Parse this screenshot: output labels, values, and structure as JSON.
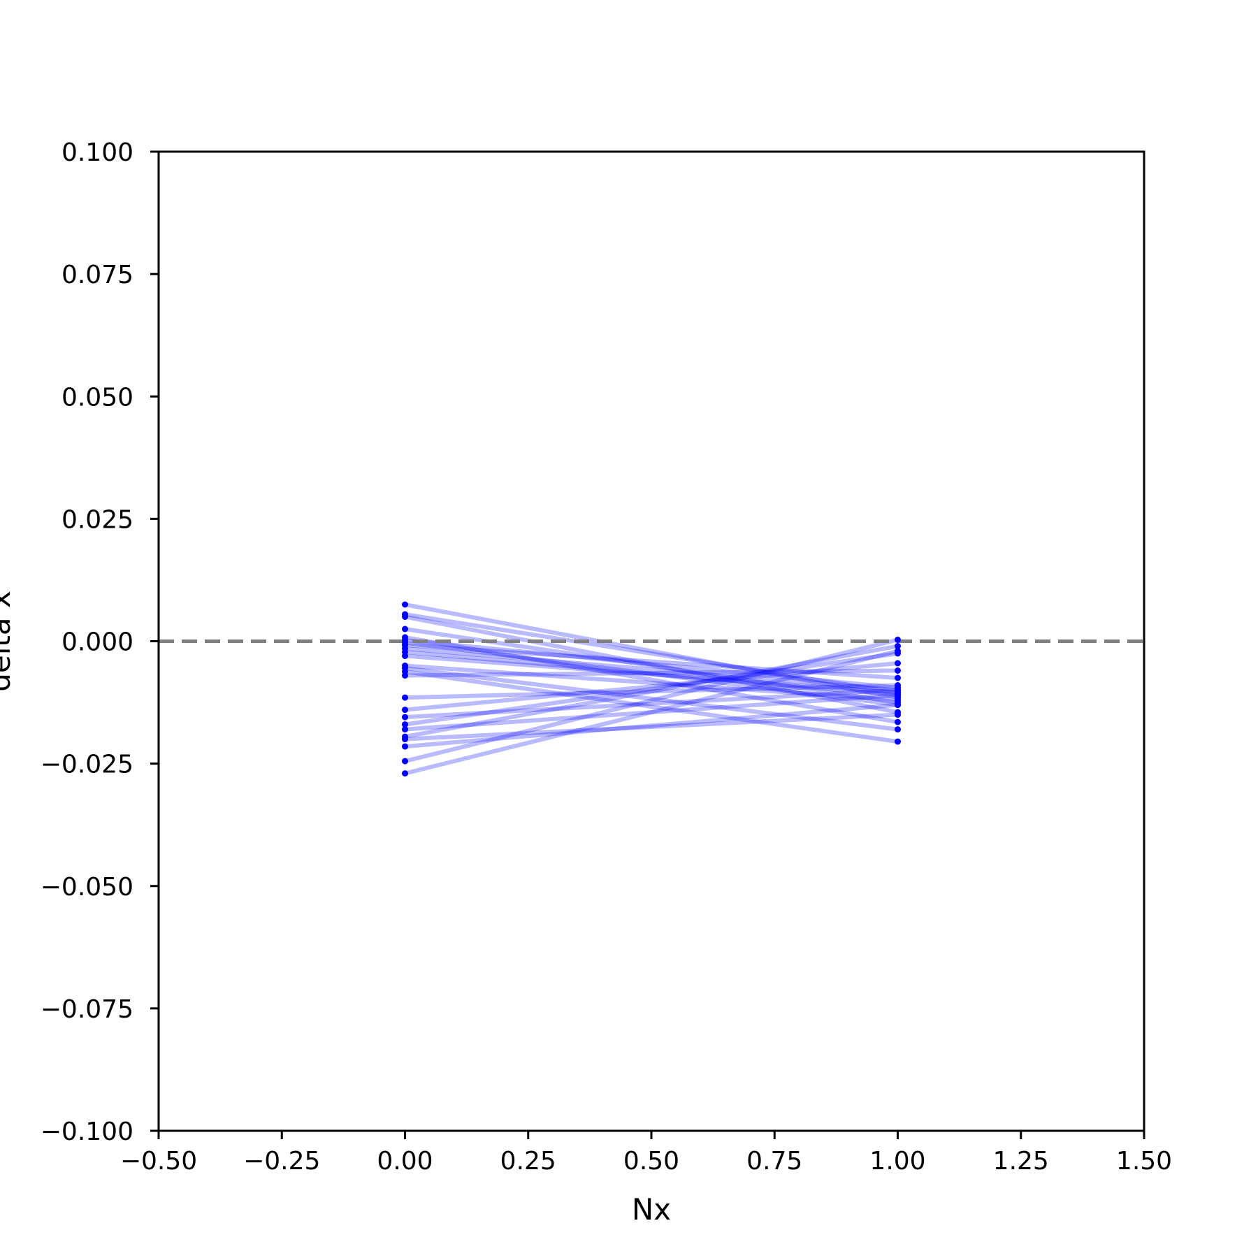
{
  "chart_data": {
    "type": "line",
    "title": "",
    "xlabel": "Nx",
    "ylabel": "delta x",
    "xlim": [
      -0.5,
      1.5
    ],
    "ylim": [
      -0.1,
      0.1
    ],
    "xticks": [
      "−0.50",
      "−0.25",
      "0.00",
      "0.25",
      "0.50",
      "0.75",
      "1.00",
      "1.25",
      "1.50"
    ],
    "xtick_values": [
      -0.5,
      -0.25,
      0,
      0.25,
      0.5,
      0.75,
      1.0,
      1.25,
      1.5
    ],
    "yticks": [
      "−0.100",
      "−0.075",
      "−0.050",
      "−0.025",
      "0.000",
      "0.025",
      "0.050",
      "0.075",
      "0.100"
    ],
    "ytick_values": [
      -0.1,
      -0.075,
      -0.05,
      -0.025,
      0,
      0.025,
      0.05,
      0.075,
      0.1
    ],
    "reference_line": {
      "y": 0,
      "style": "dashed",
      "color": "#808080"
    },
    "grid": false,
    "series_color": "#0000ff",
    "x": [
      0,
      1
    ],
    "series": [
      {
        "values": [
          0.0075,
          -0.0115
        ]
      },
      {
        "values": [
          0.0055,
          -0.0105
        ]
      },
      {
        "values": [
          0.005,
          -0.0145
        ]
      },
      {
        "values": [
          0.0025,
          -0.0125
        ]
      },
      {
        "values": [
          0.0008,
          -0.0165
        ]
      },
      {
        "values": [
          0.0002,
          -0.0095
        ]
      },
      {
        "values": [
          -0.0003,
          -0.013
        ]
      },
      {
        "values": [
          -0.0008,
          -0.0075
        ]
      },
      {
        "values": [
          -0.0015,
          -0.01
        ]
      },
      {
        "values": [
          -0.0022,
          -0.011
        ]
      },
      {
        "values": [
          -0.003,
          -0.0105
        ]
      },
      {
        "values": [
          -0.005,
          -0.012
        ]
      },
      {
        "values": [
          -0.0055,
          -0.018
        ]
      },
      {
        "values": [
          -0.0062,
          -0.0205
        ]
      },
      {
        "values": [
          -0.007,
          -0.006
        ]
      },
      {
        "values": [
          -0.0115,
          -0.009
        ]
      },
      {
        "values": [
          -0.014,
          -0.0045
        ]
      },
      {
        "values": [
          -0.0155,
          -0.01
        ]
      },
      {
        "values": [
          -0.017,
          -0.0025
        ]
      },
      {
        "values": [
          -0.018,
          -0.011
        ]
      },
      {
        "values": [
          -0.0195,
          -0.001
        ]
      },
      {
        "values": [
          -0.02,
          -0.015
        ]
      },
      {
        "values": [
          -0.0215,
          -0.013
        ]
      },
      {
        "values": [
          -0.0245,
          0.0003
        ]
      },
      {
        "values": [
          -0.027,
          -0.002
        ]
      }
    ]
  }
}
